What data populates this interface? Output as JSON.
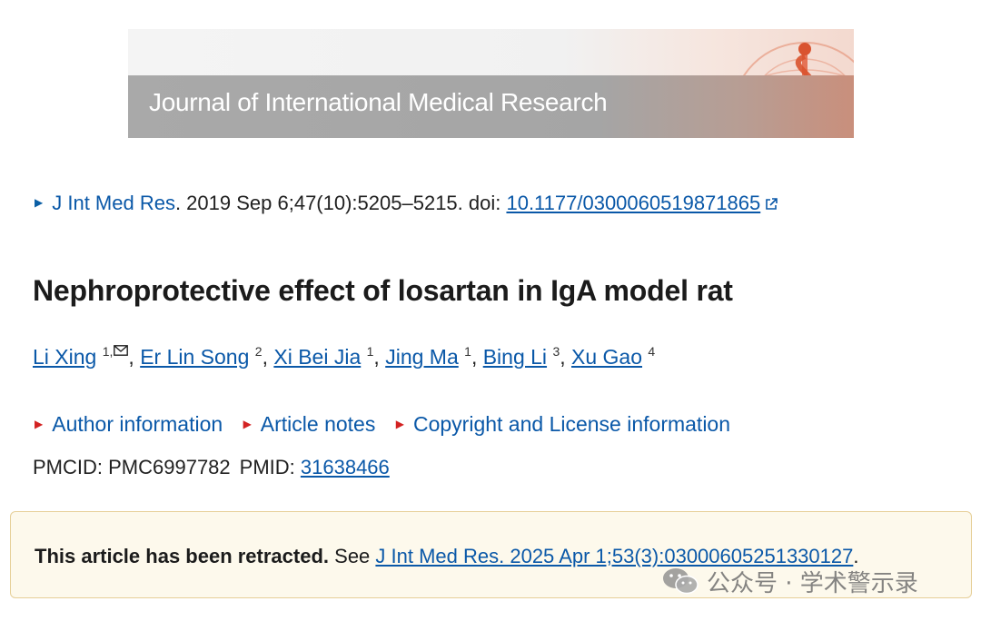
{
  "banner": {
    "journal_title": "Journal of International Medical Research"
  },
  "citation": {
    "journal_abbrev": "J Int Med Res",
    "details": ". 2019 Sep 6;47(10):5205–5215. doi: ",
    "doi": "10.1177/0300060519871865"
  },
  "article": {
    "title": "Nephroprotective effect of losartan in IgA model rat"
  },
  "authors": [
    {
      "name": "Li Xing",
      "sup": "1,"
    },
    {
      "name": "Er Lin Song",
      "sup": "2"
    },
    {
      "name": "Xi Bei Jia",
      "sup": "1"
    },
    {
      "name": "Jing Ma",
      "sup": "1"
    },
    {
      "name": "Bing Li",
      "sup": "3"
    },
    {
      "name": "Xu Gao",
      "sup": "4"
    }
  ],
  "info_links": [
    "Author information",
    "Article notes",
    "Copyright and License information"
  ],
  "ids": {
    "pmcid_label": "PMCID: PMC6997782",
    "pmid_label": "PMID: ",
    "pmid": "31638466"
  },
  "retraction": {
    "bold": "This article has been retracted.",
    "see": " See ",
    "link": "J Int Med Res. 2025 Apr 1;53(3):03000605251330127",
    "end": "."
  },
  "watermark": {
    "text": "公众号 · 学术警示录"
  },
  "colors": {
    "link": "#0a58a8",
    "bullet_blue": "#0b5fa5",
    "bullet_red": "#d32222",
    "retraction_bg": "#fdf9ec",
    "retraction_border": "#e6cf98"
  },
  "icons": [
    "external-link-icon",
    "mail-icon",
    "wechat-icon",
    "caduceus-logo"
  ]
}
